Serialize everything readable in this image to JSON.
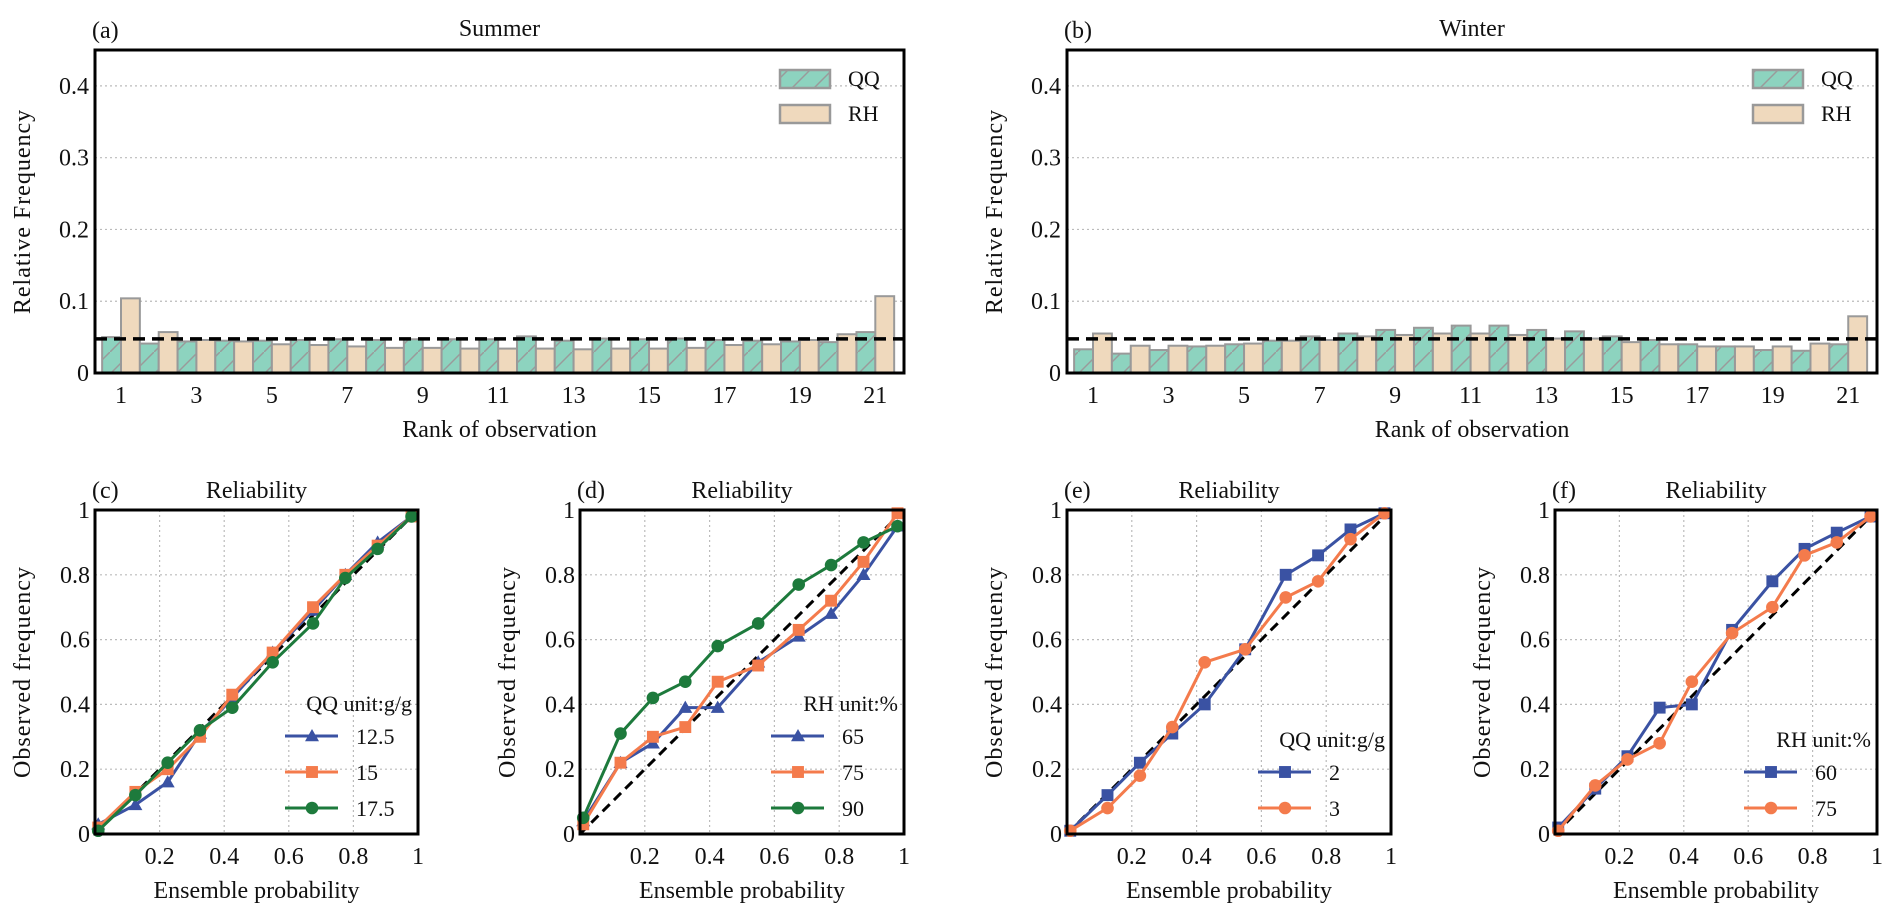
{
  "chart_data": [
    {
      "type": "bar",
      "panel": "(a)",
      "title": "Summer",
      "xlabel": "Rank of observation",
      "ylabel": "Relative Frequency",
      "ylim": [
        0,
        0.45
      ],
      "yticks": [
        "0",
        "0.1",
        "0.2",
        "0.3",
        "0.4"
      ],
      "xticks": [
        "1",
        "3",
        "5",
        "7",
        "9",
        "11",
        "13",
        "15",
        "17",
        "19",
        "21"
      ],
      "categories": [
        1,
        2,
        3,
        4,
        5,
        6,
        7,
        8,
        9,
        10,
        11,
        12,
        13,
        14,
        15,
        16,
        17,
        18,
        19,
        20,
        21
      ],
      "reference_line": 0.0476,
      "legend_position": "top-right",
      "series": [
        {
          "name": "QQ",
          "color": "#8dd3bf",
          "values": [
            0.05,
            0.041,
            0.044,
            0.045,
            0.045,
            0.046,
            0.047,
            0.046,
            0.047,
            0.047,
            0.047,
            0.051,
            0.045,
            0.048,
            0.047,
            0.048,
            0.046,
            0.045,
            0.044,
            0.043,
            0.057
          ]
        },
        {
          "name": "RH",
          "color": "#efd9bd",
          "values": [
            0.104,
            0.057,
            0.046,
            0.044,
            0.04,
            0.039,
            0.037,
            0.035,
            0.035,
            0.034,
            0.034,
            0.034,
            0.033,
            0.034,
            0.034,
            0.035,
            0.039,
            0.04,
            0.046,
            0.054,
            0.107
          ]
        }
      ]
    },
    {
      "type": "bar",
      "panel": "(b)",
      "title": "Winter",
      "xlabel": "Rank of observation",
      "ylabel": "Relative Frequency",
      "ylim": [
        0,
        0.45
      ],
      "yticks": [
        "0",
        "0.1",
        "0.2",
        "0.3",
        "0.4"
      ],
      "xticks": [
        "1",
        "3",
        "5",
        "7",
        "9",
        "11",
        "13",
        "15",
        "17",
        "19",
        "21"
      ],
      "categories": [
        1,
        2,
        3,
        4,
        5,
        6,
        7,
        8,
        9,
        10,
        11,
        12,
        13,
        14,
        15,
        16,
        17,
        18,
        19,
        20,
        21
      ],
      "reference_line": 0.0476,
      "legend_position": "top-right",
      "series": [
        {
          "name": "QQ",
          "color": "#8dd3bf",
          "values": [
            0.033,
            0.027,
            0.032,
            0.037,
            0.04,
            0.045,
            0.051,
            0.055,
            0.06,
            0.063,
            0.066,
            0.066,
            0.06,
            0.058,
            0.051,
            0.046,
            0.04,
            0.037,
            0.032,
            0.031,
            0.04
          ]
        },
        {
          "name": "RH",
          "color": "#efd9bd",
          "values": [
            0.055,
            0.038,
            0.038,
            0.038,
            0.041,
            0.045,
            0.046,
            0.051,
            0.053,
            0.055,
            0.055,
            0.053,
            0.048,
            0.048,
            0.043,
            0.04,
            0.037,
            0.037,
            0.037,
            0.041,
            0.079
          ]
        }
      ]
    },
    {
      "type": "line",
      "panel": "(c)",
      "title": "Reliability",
      "xlabel": "Ensemble probability",
      "ylabel": "Observed frequency",
      "xlim": [
        0,
        1
      ],
      "ylim": [
        0,
        1
      ],
      "xticks": [
        "0.2",
        "0.4",
        "0.6",
        "0.8",
        "1"
      ],
      "yticks": [
        "0",
        "0.2",
        "0.4",
        "0.6",
        "0.8",
        "1"
      ],
      "legend_title": "QQ unit:g/g",
      "legend_position": "bottom-right",
      "x": [
        0.01,
        0.125,
        0.225,
        0.325,
        0.425,
        0.55,
        0.675,
        0.775,
        0.875,
        0.98
      ],
      "series": [
        {
          "name": "12.5",
          "color": "#3a52a3",
          "marker": "triangle",
          "values": [
            0.03,
            0.09,
            0.16,
            0.31,
            0.42,
            0.56,
            0.69,
            0.8,
            0.9,
            0.98
          ]
        },
        {
          "name": "15",
          "color": "#f47b4c",
          "marker": "square",
          "values": [
            0.02,
            0.13,
            0.2,
            0.3,
            0.43,
            0.56,
            0.7,
            0.8,
            0.89,
            0.98
          ]
        },
        {
          "name": "17.5",
          "color": "#1d7a3c",
          "marker": "circle",
          "values": [
            0.01,
            0.12,
            0.22,
            0.32,
            0.39,
            0.53,
            0.65,
            0.79,
            0.88,
            0.98
          ]
        }
      ]
    },
    {
      "type": "line",
      "panel": "(d)",
      "title": "Reliability",
      "xlabel": "Ensemble probability",
      "ylabel": "Observed frequency",
      "xlim": [
        0,
        1
      ],
      "ylim": [
        0,
        1
      ],
      "xticks": [
        "0.2",
        "0.4",
        "0.6",
        "0.8",
        "1"
      ],
      "yticks": [
        "0",
        "0.2",
        "0.4",
        "0.6",
        "0.8",
        "1"
      ],
      "legend_title": "RH unit:%",
      "legend_position": "bottom-right",
      "x": [
        0.01,
        0.125,
        0.225,
        0.325,
        0.425,
        0.55,
        0.675,
        0.775,
        0.875,
        0.98
      ],
      "series": [
        {
          "name": "65",
          "color": "#3a52a3",
          "marker": "triangle",
          "values": [
            0.04,
            0.22,
            0.28,
            0.39,
            0.39,
            0.53,
            0.61,
            0.68,
            0.8,
            0.95
          ]
        },
        {
          "name": "75",
          "color": "#f47b4c",
          "marker": "square",
          "values": [
            0.03,
            0.22,
            0.3,
            0.33,
            0.47,
            0.52,
            0.63,
            0.72,
            0.84,
            0.99
          ]
        },
        {
          "name": "90",
          "color": "#1d7a3c",
          "marker": "circle",
          "values": [
            0.05,
            0.31,
            0.42,
            0.47,
            0.58,
            0.65,
            0.77,
            0.83,
            0.9,
            0.95
          ]
        }
      ]
    },
    {
      "type": "line",
      "panel": "(e)",
      "title": "Reliability",
      "xlabel": "Ensemble probability",
      "ylabel": "Observed frequency",
      "xlim": [
        0,
        1
      ],
      "ylim": [
        0,
        1
      ],
      "xticks": [
        "0.2",
        "0.4",
        "0.6",
        "0.8",
        "1"
      ],
      "yticks": [
        "0",
        "0.2",
        "0.4",
        "0.6",
        "0.8",
        "1"
      ],
      "legend_title": "QQ unit:g/g",
      "legend_position": "bottom-right",
      "x": [
        0.01,
        0.125,
        0.225,
        0.325,
        0.425,
        0.55,
        0.675,
        0.775,
        0.875,
        0.98
      ],
      "series": [
        {
          "name": "2",
          "color": "#3a52a3",
          "marker": "square",
          "values": [
            0.01,
            0.12,
            0.22,
            0.31,
            0.4,
            0.57,
            0.8,
            0.86,
            0.94,
            0.99
          ]
        },
        {
          "name": "3",
          "color": "#f47b4c",
          "marker": "circle",
          "values": [
            0.01,
            0.08,
            0.18,
            0.33,
            0.53,
            0.57,
            0.73,
            0.78,
            0.91,
            0.99
          ]
        }
      ]
    },
    {
      "type": "line",
      "panel": "(f)",
      "title": "Reliability",
      "xlabel": "Ensemble probability",
      "ylabel": "Observed frequency",
      "xlim": [
        0,
        1
      ],
      "ylim": [
        0,
        1
      ],
      "xticks": [
        "0.2",
        "0.4",
        "0.6",
        "0.8",
        "1"
      ],
      "yticks": [
        "0",
        "0.2",
        "0.4",
        "0.6",
        "0.8",
        "1"
      ],
      "legend_title": "RH unit:%",
      "legend_position": "bottom-right",
      "x": [
        0.01,
        0.125,
        0.225,
        0.325,
        0.425,
        0.55,
        0.675,
        0.775,
        0.875,
        0.98
      ],
      "series": [
        {
          "name": "60",
          "color": "#3a52a3",
          "marker": "square",
          "values": [
            0.02,
            0.14,
            0.24,
            0.39,
            0.4,
            0.63,
            0.78,
            0.88,
            0.93,
            0.98
          ]
        },
        {
          "name": "75",
          "color": "#f47b4c",
          "marker": "circle",
          "values": [
            0.01,
            0.15,
            0.23,
            0.28,
            0.47,
            0.62,
            0.7,
            0.86,
            0.9,
            0.98
          ]
        }
      ]
    }
  ]
}
